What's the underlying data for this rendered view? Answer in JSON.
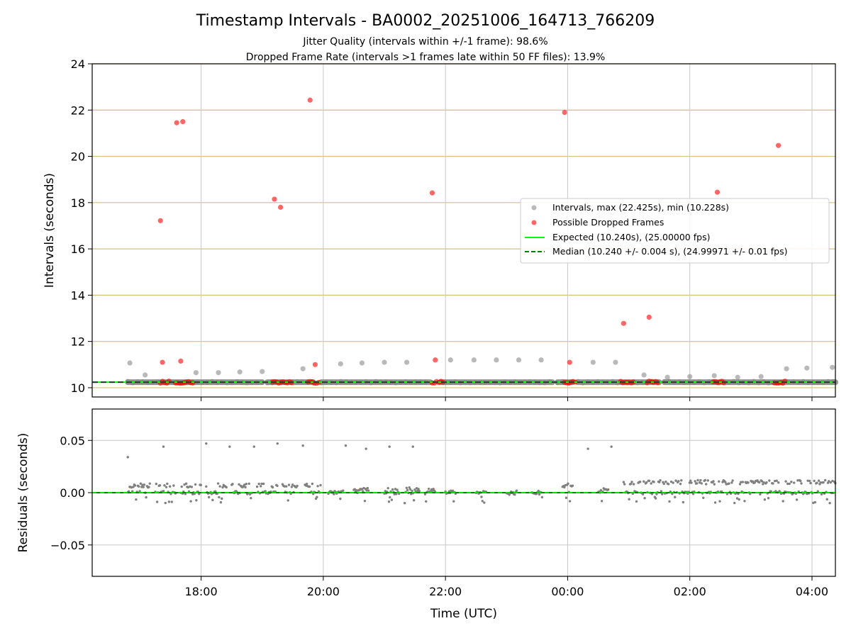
{
  "chart_data": {
    "type": "scatter",
    "title": "Timestamp Intervals - BA0002_20251006_164713_766209",
    "subtitle_lines": [
      "Jitter Quality (intervals within +/-1 frame): 98.6%",
      "Dropped Frame Rate (intervals >1 frames late within 50 FF files): 13.9%"
    ],
    "xlabel": "Time (UTC)",
    "x_ticks": [
      "18:00",
      "20:00",
      "22:00",
      "00:00",
      "02:00",
      "04:00"
    ],
    "x_range": [
      "16:13",
      "04:23"
    ],
    "grid": true,
    "top_panel": {
      "ylabel": "Intervals (seconds)",
      "ylim": [
        9.6,
        24
      ],
      "y_ticks": [
        "10",
        "12",
        "14",
        "16",
        "18",
        "20",
        "22",
        "24"
      ],
      "legend_position": "center-right",
      "legend": [
        "Intervals, max (22.425s), min (10.228s)",
        "Possible Dropped Frames",
        "Expected (10.240s), (25.00000 fps)",
        "Median (10.240 +/- 0.004 s), (24.99971 +/- 0.01 fps)"
      ],
      "expected_interval": 10.24,
      "median_interval": 10.24,
      "colors": {
        "intervals": "#808080",
        "dropped": "#ff0000",
        "expected": "#00ff00",
        "median": "#008000",
        "gridline": "#d4c07a"
      },
      "intervals_upper": [
        {
          "t": "16:50",
          "y": 11.07
        },
        {
          "t": "17:05",
          "y": 10.55
        },
        {
          "t": "17:55",
          "y": 10.65
        },
        {
          "t": "18:17",
          "y": 10.65
        },
        {
          "t": "18:38",
          "y": 10.68
        },
        {
          "t": "19:00",
          "y": 10.7
        },
        {
          "t": "19:40",
          "y": 10.82
        },
        {
          "t": "20:17",
          "y": 11.03
        },
        {
          "t": "20:38",
          "y": 11.07
        },
        {
          "t": "21:00",
          "y": 11.1
        },
        {
          "t": "21:22",
          "y": 11.1
        },
        {
          "t": "22:05",
          "y": 11.2
        },
        {
          "t": "22:28",
          "y": 11.2
        },
        {
          "t": "22:50",
          "y": 11.2
        },
        {
          "t": "23:12",
          "y": 11.2
        },
        {
          "t": "23:34",
          "y": 11.2
        },
        {
          "t": "00:25",
          "y": 11.1
        },
        {
          "t": "00:47",
          "y": 11.1
        },
        {
          "t": "01:15",
          "y": 10.55
        },
        {
          "t": "01:38",
          "y": 10.45
        },
        {
          "t": "02:00",
          "y": 10.48
        },
        {
          "t": "02:24",
          "y": 10.52
        },
        {
          "t": "02:47",
          "y": 10.45
        },
        {
          "t": "03:10",
          "y": 10.48
        },
        {
          "t": "03:35",
          "y": 10.82
        },
        {
          "t": "03:55",
          "y": 10.85
        },
        {
          "t": "04:20",
          "y": 10.88
        }
      ],
      "intervals_baseline_runs": [
        [
          "16:48",
          "19:00"
        ],
        [
          "19:05",
          "19:50"
        ],
        [
          "19:58",
          "21:45"
        ],
        [
          "21:55",
          "23:45"
        ],
        [
          "23:50",
          "00:05"
        ],
        [
          "00:10",
          "01:30"
        ],
        [
          "01:35",
          "04:23"
        ]
      ],
      "dropped_outliers": [
        {
          "t": "17:20",
          "y": 17.22
        },
        {
          "t": "17:22",
          "y": 11.1
        },
        {
          "t": "17:36",
          "y": 21.45
        },
        {
          "t": "17:40",
          "y": 11.15
        },
        {
          "t": "17:42",
          "y": 21.5
        },
        {
          "t": "19:12",
          "y": 18.15
        },
        {
          "t": "19:18",
          "y": 17.8
        },
        {
          "t": "19:47",
          "y": 22.43
        },
        {
          "t": "19:52",
          "y": 11.0
        },
        {
          "t": "21:47",
          "y": 18.42
        },
        {
          "t": "21:50",
          "y": 11.2
        },
        {
          "t": "23:57",
          "y": 21.9
        },
        {
          "t": "00:02",
          "y": 11.1
        },
        {
          "t": "00:55",
          "y": 12.78
        },
        {
          "t": "01:20",
          "y": 13.05
        },
        {
          "t": "02:27",
          "y": 18.45
        },
        {
          "t": "03:27",
          "y": 20.47
        }
      ],
      "dropped_baseline_clusters": [
        [
          "17:20",
          "17:30"
        ],
        [
          "17:35",
          "17:52"
        ],
        [
          "19:10",
          "19:30"
        ],
        [
          "19:45",
          "19:57"
        ],
        [
          "21:47",
          "21:58"
        ],
        [
          "23:57",
          "00:08"
        ],
        [
          "00:52",
          "01:05"
        ],
        [
          "01:18",
          "01:30"
        ],
        [
          "02:23",
          "02:35"
        ],
        [
          "03:23",
          "03:35"
        ]
      ]
    },
    "bottom_panel": {
      "ylabel": "Residuals (seconds)",
      "ylim": [
        -0.08,
        0.08
      ],
      "y_ticks": [
        "0.05",
        "0.00",
        "−0.05"
      ],
      "residual_color": "#808080",
      "zero_line_colors": [
        "#008000",
        "#00ff00"
      ],
      "outlier_residuals": [
        {
          "t": "16:48",
          "y": 0.034
        },
        {
          "t": "17:23",
          "y": 0.044
        },
        {
          "t": "18:05",
          "y": 0.047
        },
        {
          "t": "18:28",
          "y": 0.044
        },
        {
          "t": "18:52",
          "y": 0.044
        },
        {
          "t": "19:15",
          "y": 0.047
        },
        {
          "t": "19:40",
          "y": 0.045
        },
        {
          "t": "20:22",
          "y": 0.045
        },
        {
          "t": "20:42",
          "y": 0.042
        },
        {
          "t": "21:05",
          "y": 0.044
        },
        {
          "t": "21:28",
          "y": 0.044
        },
        {
          "t": "00:20",
          "y": 0.042
        },
        {
          "t": "00:43",
          "y": 0.044
        }
      ],
      "clusters": [
        {
          "start": "16:48",
          "end": "17:10",
          "top": 0.007
        },
        {
          "start": "17:15",
          "end": "17:35",
          "top": 0.007
        },
        {
          "start": "17:40",
          "end": "18:00",
          "top": 0.007
        },
        {
          "start": "18:05",
          "end": "18:25",
          "top": 0.007
        },
        {
          "start": "18:30",
          "end": "18:50",
          "top": 0.007
        },
        {
          "start": "18:55",
          "end": "19:15",
          "top": 0.007
        },
        {
          "start": "19:20",
          "end": "19:35",
          "top": 0.007
        },
        {
          "start": "19:42",
          "end": "19:58",
          "top": 0.007
        },
        {
          "start": "20:05",
          "end": "20:20",
          "top": 0.003
        },
        {
          "start": "20:30",
          "end": "20:45",
          "top": 0.003
        },
        {
          "start": "21:00",
          "end": "21:15",
          "top": 0.003
        },
        {
          "start": "21:20",
          "end": "21:35",
          "top": 0.003
        },
        {
          "start": "21:40",
          "end": "21:50",
          "top": 0.003
        },
        {
          "start": "22:00",
          "end": "22:10",
          "top": 0.0
        },
        {
          "start": "22:30",
          "end": "22:40",
          "top": 0.0
        },
        {
          "start": "23:00",
          "end": "23:10",
          "top": 0.0
        },
        {
          "start": "23:25",
          "end": "23:35",
          "top": 0.0
        },
        {
          "start": "23:55",
          "end": "00:05",
          "top": 0.007
        },
        {
          "start": "00:30",
          "end": "00:40",
          "top": 0.003
        },
        {
          "start": "00:55",
          "end": "04:23",
          "top": 0.01
        }
      ]
    }
  }
}
